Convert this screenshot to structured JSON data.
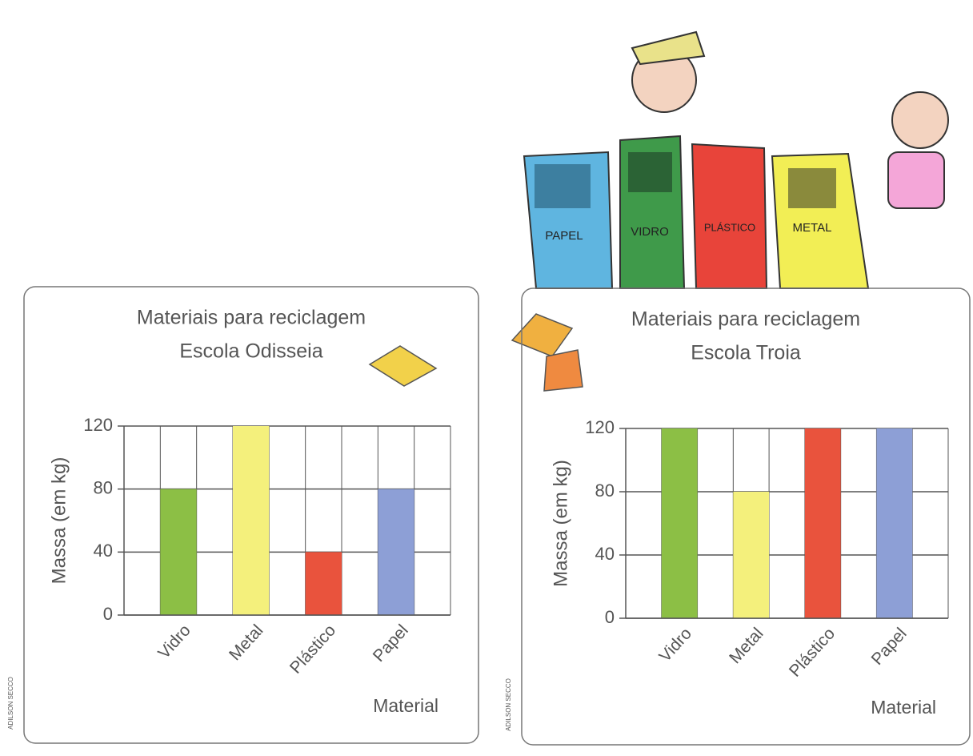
{
  "chart_data": [
    {
      "type": "bar",
      "title": "Materiais para reciclagem",
      "subtitle": "Escola Odisseia",
      "y_label": "Massa (em kg)",
      "x_label": "Material",
      "credit": "ADILSON SECCO",
      "categories": [
        "Vidro",
        "Metal",
        "Plástico",
        "Papel"
      ],
      "values": [
        80,
        120,
        40,
        80
      ],
      "colors": [
        "#8cbf45",
        "#f4f07c",
        "#e9533d",
        "#8d9fd6"
      ],
      "ylim": [
        0,
        120
      ],
      "yticks": [
        0,
        40,
        80,
        120
      ],
      "grid": true
    },
    {
      "type": "bar",
      "title": "Materiais para reciclagem",
      "subtitle": "Escola Troia",
      "y_label": "Massa (em kg)",
      "x_label": "Material",
      "credit": "ADILSON SECCO",
      "categories": [
        "Vidro",
        "Metal",
        "Plástico",
        "Papel"
      ],
      "values": [
        120,
        80,
        120,
        120
      ],
      "colors": [
        "#8cbf45",
        "#f4f07c",
        "#e9533d",
        "#8d9fd6"
      ],
      "ylim": [
        0,
        120
      ],
      "yticks": [
        0,
        40,
        80,
        120
      ],
      "grid": true
    }
  ],
  "illustration": {
    "bin_labels": [
      "PAPEL",
      "VIDRO",
      "PLÁSTICO",
      "METAL"
    ]
  }
}
